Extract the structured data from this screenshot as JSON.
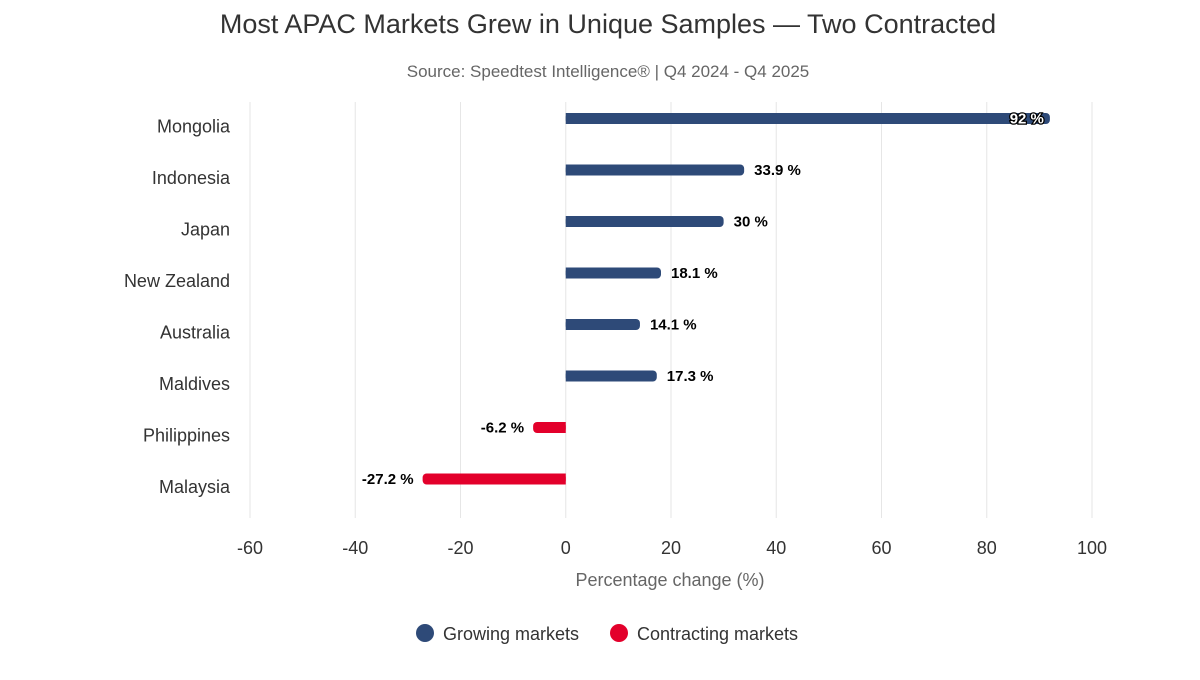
{
  "chart_data": {
    "type": "bar",
    "orientation": "horizontal",
    "title": "Most APAC Markets Grew in Unique Samples — Two Contracted",
    "subtitle": "Source: Speedtest Intelligence® | Q4 2024 - Q4 2025",
    "xlabel": "Percentage change (%)",
    "ylabel": "",
    "xlim": [
      -60,
      100
    ],
    "x_ticks": [
      -60,
      -40,
      -20,
      0,
      20,
      40,
      60,
      80,
      100
    ],
    "grid": true,
    "categories": [
      "Mongolia",
      "Indonesia",
      "Japan",
      "New Zealand",
      "Australia",
      "Maldives",
      "Philippines",
      "Malaysia"
    ],
    "values": [
      92,
      33.9,
      30,
      18.1,
      14.1,
      17.3,
      -6.2,
      -27.2
    ],
    "data_labels": [
      "92 %",
      "33.9 %",
      "30 %",
      "18.1 %",
      "14.1 %",
      "17.3 %",
      "-6.2 %",
      "-27.2 %"
    ],
    "series": [
      {
        "name": "Growing markets",
        "color": "#2e4a78"
      },
      {
        "name": "Contracting markets",
        "color": "#e3002b"
      }
    ],
    "legend_position": "bottom"
  }
}
